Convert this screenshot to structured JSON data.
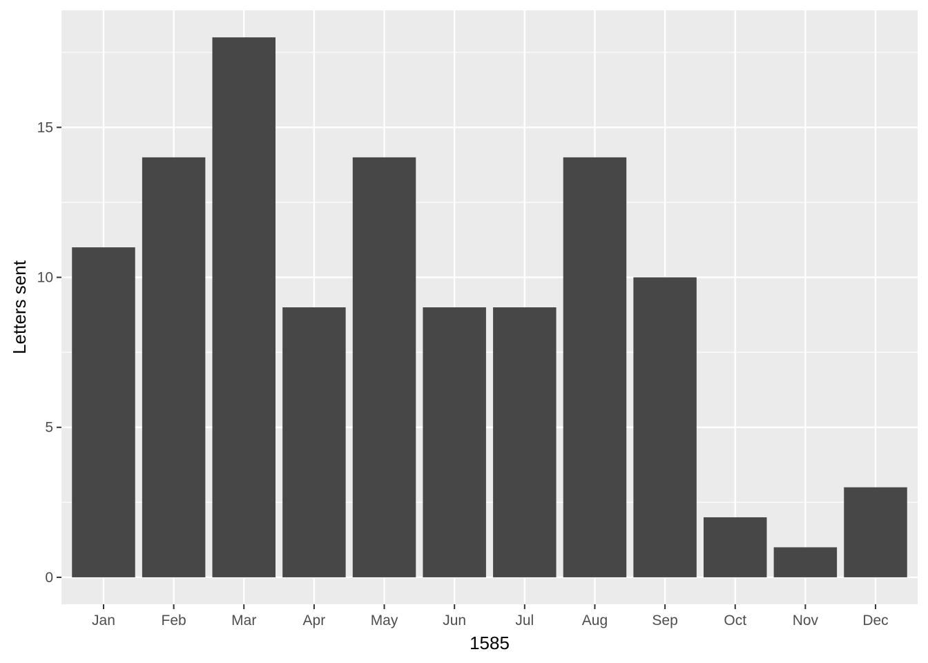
{
  "chart_data": {
    "type": "bar",
    "x_label": "1585",
    "y_label": "Letters sent",
    "categories": [
      "Jan",
      "Feb",
      "Mar",
      "Apr",
      "May",
      "Jun",
      "Jul",
      "Aug",
      "Sep",
      "Oct",
      "Nov",
      "Dec"
    ],
    "values": [
      11,
      14,
      18,
      9,
      14,
      9,
      9,
      14,
      10,
      2,
      1,
      3
    ],
    "color": "#474747",
    "ylim": [
      -0.9,
      18.9
    ],
    "yticks": [
      0,
      5,
      10,
      15
    ],
    "minor_yticks": [
      2.5,
      7.5,
      12.5,
      17.5
    ],
    "grid": true
  }
}
